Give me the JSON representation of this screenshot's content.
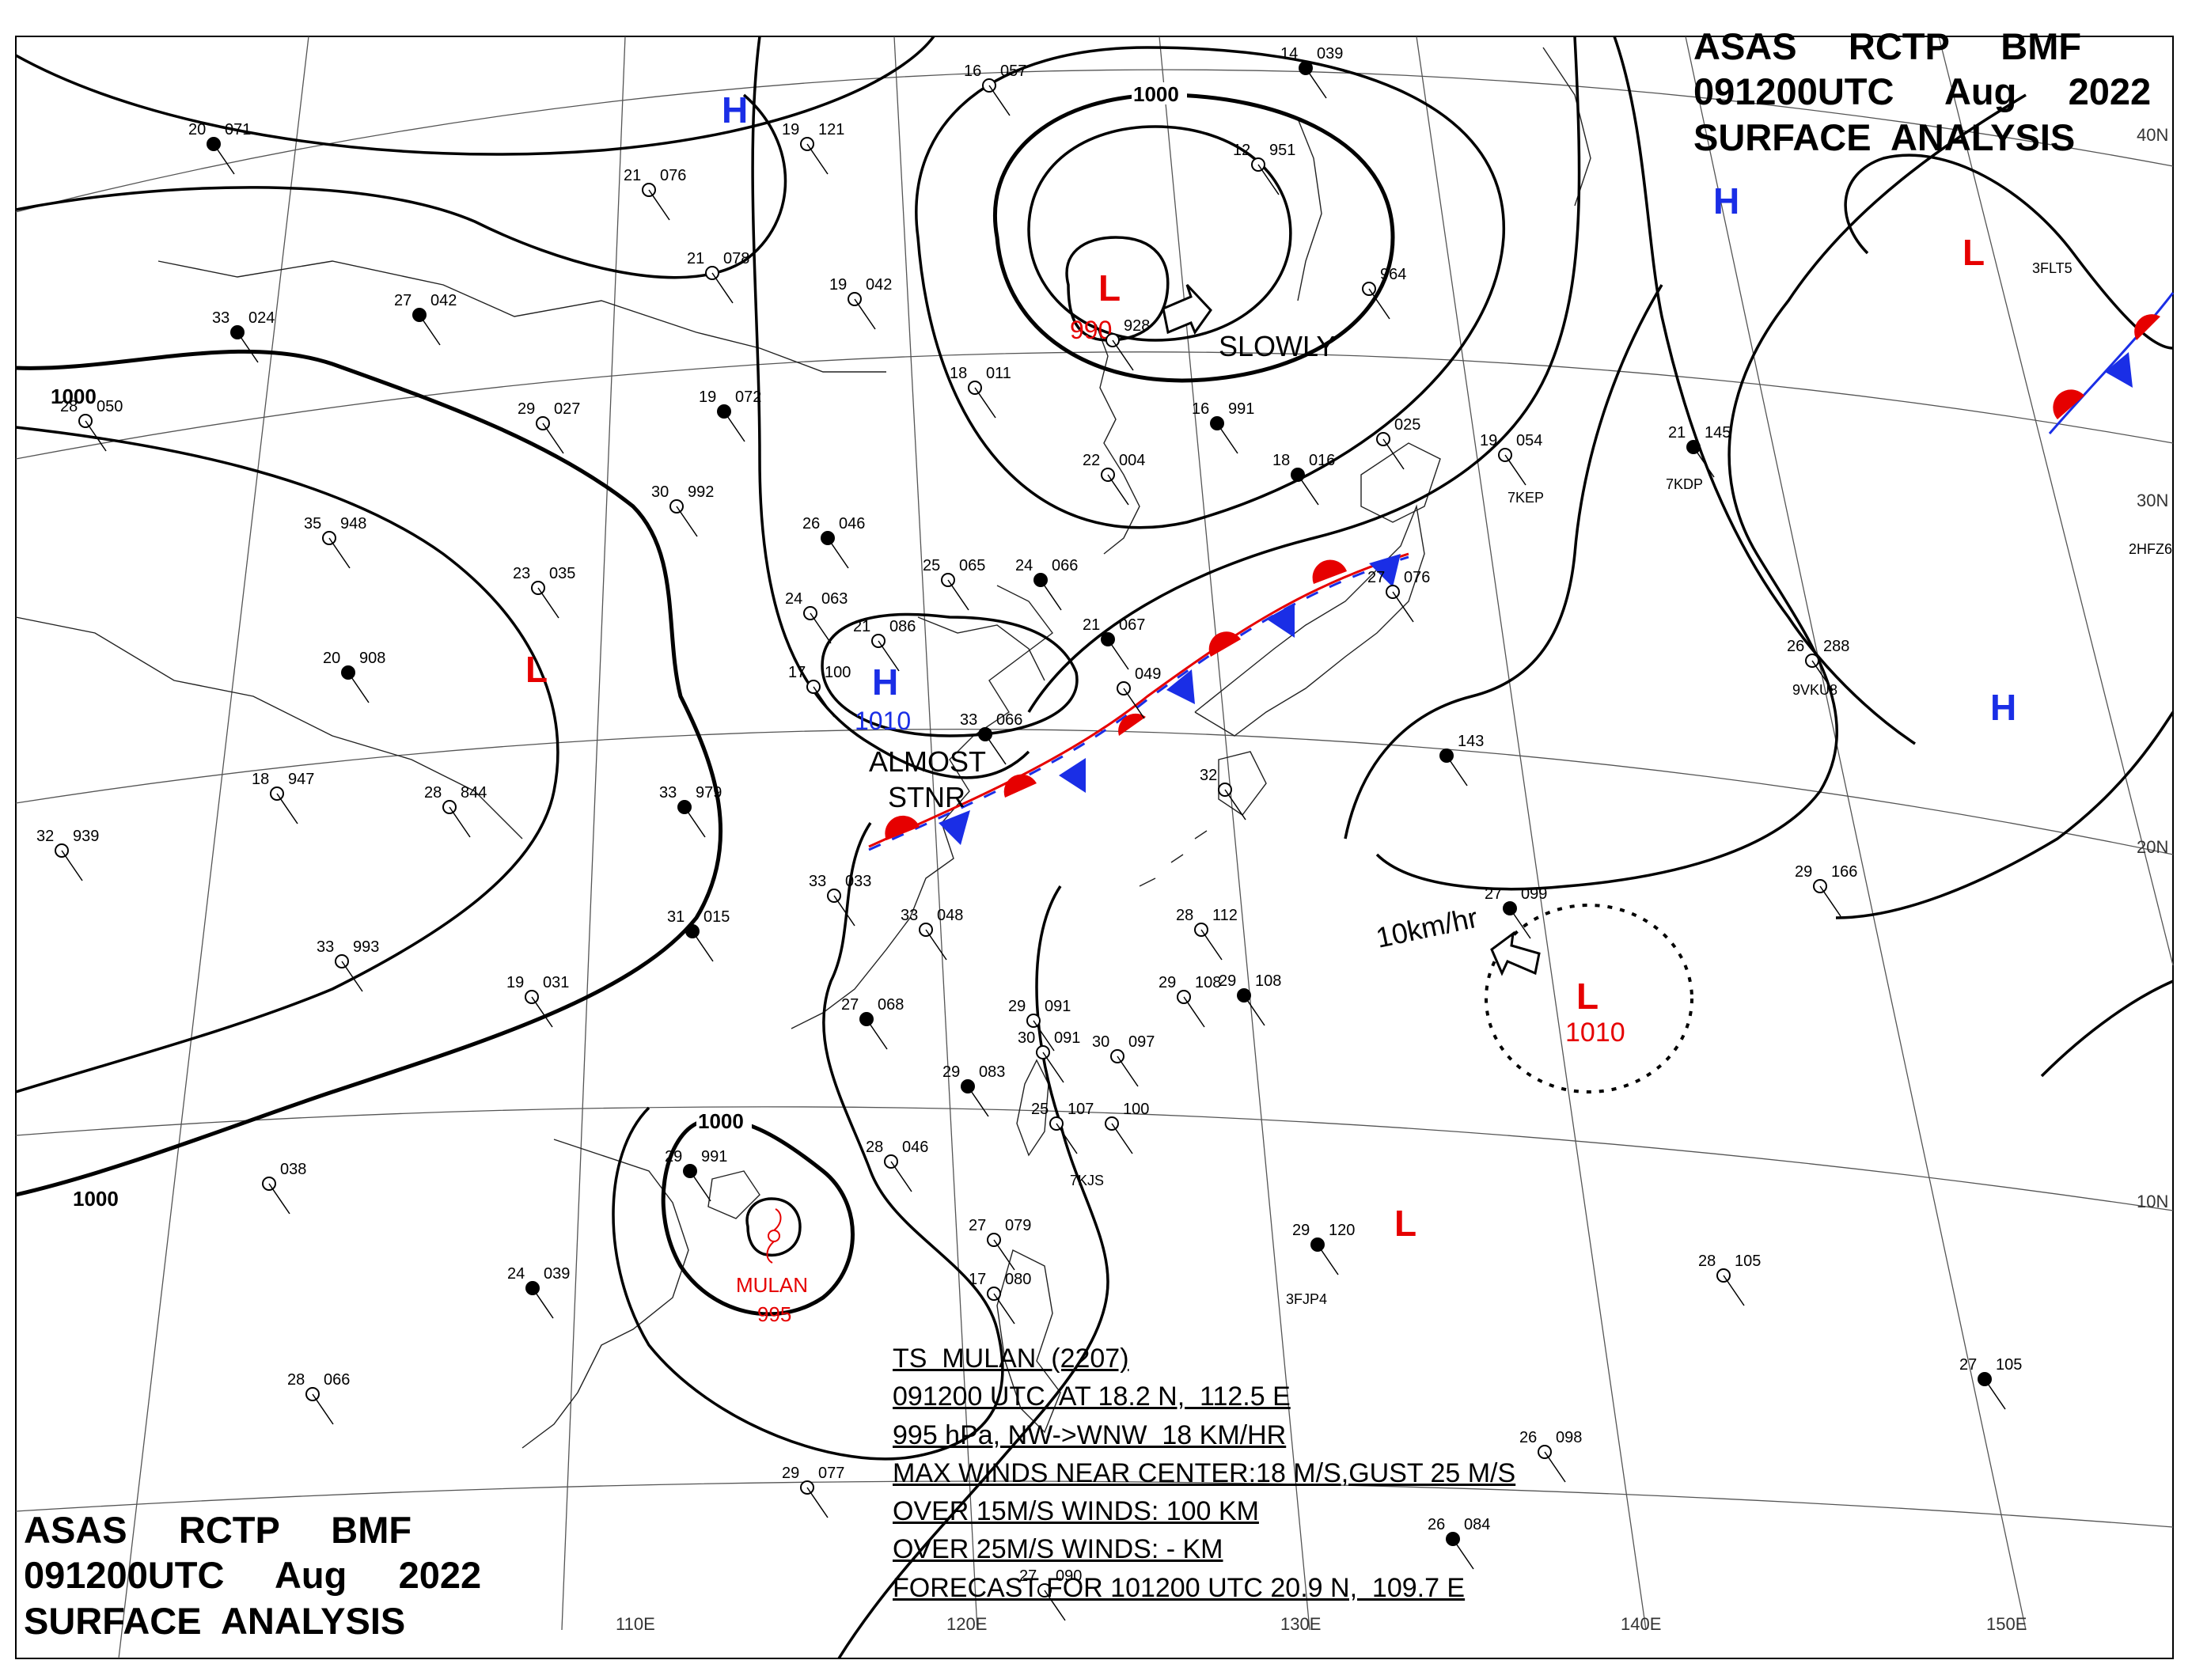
{
  "header": {
    "line1": "ASAS     RCTP     BMF",
    "line2": "091200UTC     Aug     2022",
    "line3": "SURFACE  ANALYSIS"
  },
  "colors": {
    "high": "#1a2ee6",
    "low": "#e60000",
    "front_warm": "#e60000",
    "front_cold": "#1a2ee6",
    "isobar": "#000000"
  },
  "longitude_labels": [
    "110E",
    "120E",
    "130E",
    "140E",
    "150E"
  ],
  "latitude_labels": [
    "40N",
    "30N",
    "20N",
    "10N"
  ],
  "isobar_labels": [
    "1000",
    "1000",
    "1000",
    "1000"
  ],
  "pressure_centers": [
    {
      "type": "H",
      "value": ""
    },
    {
      "type": "L",
      "value": "990"
    },
    {
      "type": "H",
      "value": ""
    },
    {
      "type": "L",
      "value": ""
    },
    {
      "type": "L",
      "value": ""
    },
    {
      "type": "H",
      "value": "1010"
    },
    {
      "type": "H",
      "value": ""
    },
    {
      "type": "L",
      "value": "1010"
    },
    {
      "type": "L",
      "value": ""
    }
  ],
  "annotations": {
    "slowly": "SLOWLY",
    "almost": "ALMOST",
    "stnr": "STNR",
    "speed": "10km/hr",
    "storm_name": "MULAN",
    "storm_pressure": "995"
  },
  "ts_info": {
    "line1": "TS  MULAN  (2207)",
    "line2": "091200 UTC  AT 18.2 N,  112.5 E",
    "line3": "995 hPa, NW->WNW  18 KM/HR",
    "line4": "MAX WINDS NEAR CENTER:18 M/S,GUST 25 M/S",
    "line5": "OVER 15M/S WINDS: 100 KM",
    "line6": "OVER 25M/S WINDS: - KM",
    "line7": "FORECAST FOR 101200 UTC 20.9 N,  109.7 E"
  },
  "stations": [
    {
      "t": "20",
      "p": "071"
    },
    {
      "t": "19",
      "p": "121"
    },
    {
      "t": "16",
      "p": "057"
    },
    {
      "t": "14",
      "p": "039"
    },
    {
      "t": "21",
      "p": "076"
    },
    {
      "t": "21",
      "p": "078"
    },
    {
      "t": "27",
      "p": "042"
    },
    {
      "t": "19",
      "p": "042"
    },
    {
      "t": "12",
      "p": "951"
    },
    {
      "t": "33",
      "p": "024"
    },
    {
      "t": "28",
      "p": "050"
    },
    {
      "t": "29",
      "p": "027"
    },
    {
      "t": "19",
      "p": "072"
    },
    {
      "t": "18",
      "p": "011"
    },
    {
      "t": "",
      "p": "928"
    },
    {
      "t": "16",
      "p": "991"
    },
    {
      "t": "",
      "p": "964"
    },
    {
      "t": "22",
      "p": "004"
    },
    {
      "t": "18",
      "p": "016"
    },
    {
      "t": "",
      "p": "025"
    },
    {
      "t": "19",
      "p": "054"
    },
    {
      "t": "21",
      "p": "145"
    },
    {
      "t": "30",
      "p": "992"
    },
    {
      "t": "35",
      "p": "948"
    },
    {
      "t": "26",
      "p": "046"
    },
    {
      "t": "23",
      "p": "035"
    },
    {
      "t": "25",
      "p": "065"
    },
    {
      "t": "24",
      "p": "066"
    },
    {
      "t": "24",
      "p": "063"
    },
    {
      "t": "21",
      "p": "086"
    },
    {
      "t": "21",
      "p": "067"
    },
    {
      "t": "27",
      "p": "076"
    },
    {
      "t": "26",
      "p": "288"
    },
    {
      "t": "20",
      "p": "908"
    },
    {
      "t": "17",
      "p": "100"
    },
    {
      "t": "",
      "p": "049"
    },
    {
      "t": "33",
      "p": "066"
    },
    {
      "t": "18",
      "p": "947"
    },
    {
      "t": "28",
      "p": "844"
    },
    {
      "t": "33",
      "p": "979"
    },
    {
      "t": "32",
      "p": "939"
    },
    {
      "t": "32",
      "p": ""
    },
    {
      "t": "",
      "p": "143"
    },
    {
      "t": "29",
      "p": "166"
    },
    {
      "t": "33",
      "p": "033"
    },
    {
      "t": "31",
      "p": "015"
    },
    {
      "t": "33",
      "p": "048"
    },
    {
      "t": "28",
      "p": "112"
    },
    {
      "t": "27",
      "p": "099"
    },
    {
      "t": "33",
      "p": "993"
    },
    {
      "t": "19",
      "p": "031"
    },
    {
      "t": "27",
      "p": "068"
    },
    {
      "t": "29",
      "p": "091"
    },
    {
      "t": "29",
      "p": "108"
    },
    {
      "t": "29",
      "p": "108"
    },
    {
      "t": "30",
      "p": "097"
    },
    {
      "t": "30",
      "p": "091"
    },
    {
      "t": "29",
      "p": "083"
    },
    {
      "t": "25",
      "p": "107"
    },
    {
      "t": "",
      "p": "100"
    },
    {
      "t": "29",
      "p": "991"
    },
    {
      "t": "28",
      "p": "046"
    },
    {
      "t": "",
      "p": "038"
    },
    {
      "t": "29",
      "p": "120"
    },
    {
      "t": "27",
      "p": "079"
    },
    {
      "t": "17",
      "p": "080"
    },
    {
      "t": "24",
      "p": "039"
    },
    {
      "t": "28",
      "p": "105"
    },
    {
      "t": "28",
      "p": "066"
    },
    {
      "t": "27",
      "p": "105"
    },
    {
      "t": "26",
      "p": "098"
    },
    {
      "t": "29",
      "p": "077"
    },
    {
      "t": "26",
      "p": "084"
    },
    {
      "t": "27",
      "p": "090"
    }
  ],
  "call_signs": [
    "3FLT5",
    "7KEP",
    "7KDP",
    "2HFZ6",
    "9VKU8",
    "7KJS",
    "3FJP4"
  ]
}
